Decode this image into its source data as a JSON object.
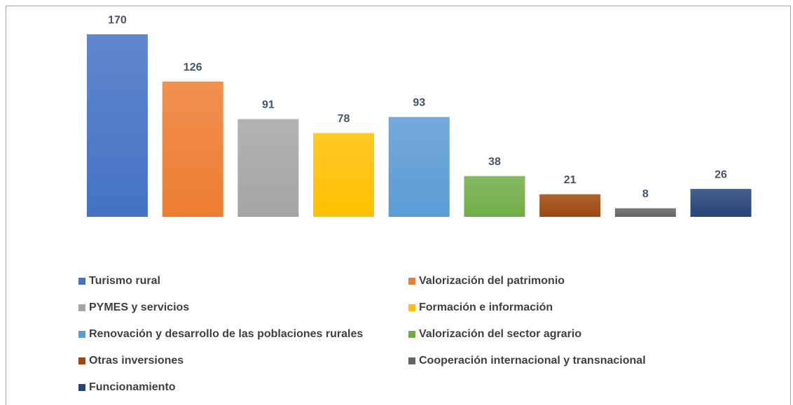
{
  "chart_data": {
    "type": "bar",
    "categories": [
      "Turismo rural",
      "Valorización del patrimonio",
      "PYMES y servicios",
      "Formación e información",
      "Renovación y desarrollo de las poblaciones rurales",
      "Valorización del sector agrario",
      "Otras inversiones",
      "Cooperación internacional y transnacional",
      "Funcionamiento"
    ],
    "values": [
      170,
      126,
      91,
      78,
      93,
      38,
      21,
      8,
      26
    ],
    "colors": [
      "#4472c4",
      "#ed7d31",
      "#a5a5a5",
      "#ffc000",
      "#5b9bd5",
      "#70ad47",
      "#9e480e",
      "#636363",
      "#264478"
    ],
    "legend": "bottom"
  }
}
